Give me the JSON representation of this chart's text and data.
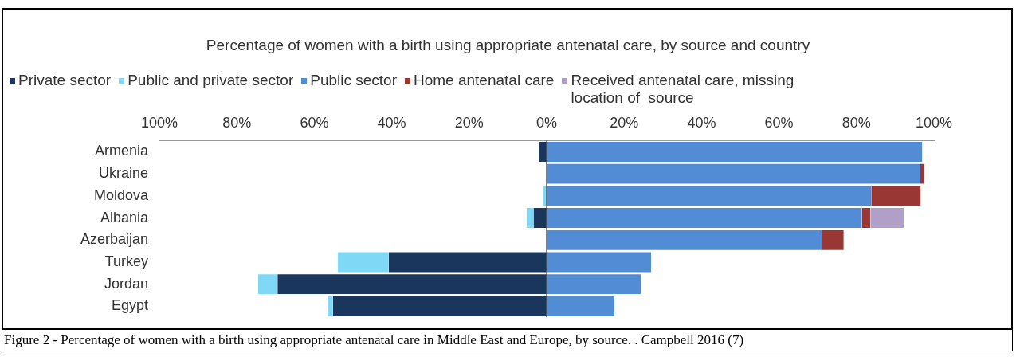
{
  "chart_data": {
    "type": "bar",
    "orientation": "horizontal",
    "stacked": true,
    "title": "Percentage of women with a birth using appropriate antenatal care, by source and country",
    "categories": [
      "Armenia",
      "Ukraine",
      "Moldova",
      "Albania",
      "Azerbaijan",
      "Turkey",
      "Jordan",
      "Egypt"
    ],
    "series": [
      {
        "name": "Private sector",
        "color": "#1a365d",
        "values": [
          -2,
          0,
          0,
          -3.4,
          0,
          -40.8,
          -69.5,
          -55.2
        ]
      },
      {
        "name": "Public and private sector",
        "color": "#7fd8f5",
        "values": [
          0,
          0,
          -1,
          -1.8,
          0,
          -13.1,
          -5,
          -1.4
        ]
      },
      {
        "name": "Public sector",
        "color": "#528cd4",
        "values": [
          97,
          96.5,
          83.8,
          81.4,
          71.1,
          27,
          24.4,
          17.5
        ]
      },
      {
        "name": "Home antenatal care",
        "color": "#983734",
        "values": [
          0,
          1.1,
          12.8,
          2.2,
          5.6,
          0,
          0,
          0
        ]
      },
      {
        "name": "Received antenatal care, missing location of  source",
        "color": "#b09fc6",
        "values": [
          0,
          0,
          0,
          8.6,
          0,
          0,
          0,
          0
        ]
      }
    ],
    "xlim": [
      -100,
      100
    ],
    "xticks": [
      {
        "value": -100,
        "label": "100%"
      },
      {
        "value": -80,
        "label": "80%"
      },
      {
        "value": -60,
        "label": "60%"
      },
      {
        "value": -40,
        "label": "40%"
      },
      {
        "value": -20,
        "label": "20%"
      },
      {
        "value": 0,
        "label": "0%"
      },
      {
        "value": 20,
        "label": "20%"
      },
      {
        "value": 40,
        "label": "40%"
      },
      {
        "value": 60,
        "label": "60%"
      },
      {
        "value": 80,
        "label": "80%"
      },
      {
        "value": 100,
        "label": "100%"
      }
    ],
    "legend": "top",
    "grid": false,
    "ref_lines": [
      {
        "axis": "x",
        "value": 0,
        "color": "#555555"
      }
    ],
    "annotations": [
      "Figure 2 - Percentage of women with a birth using appropriate antenatal care in Middle East and Europe, by source. . Campbell 2016 (7)"
    ]
  }
}
